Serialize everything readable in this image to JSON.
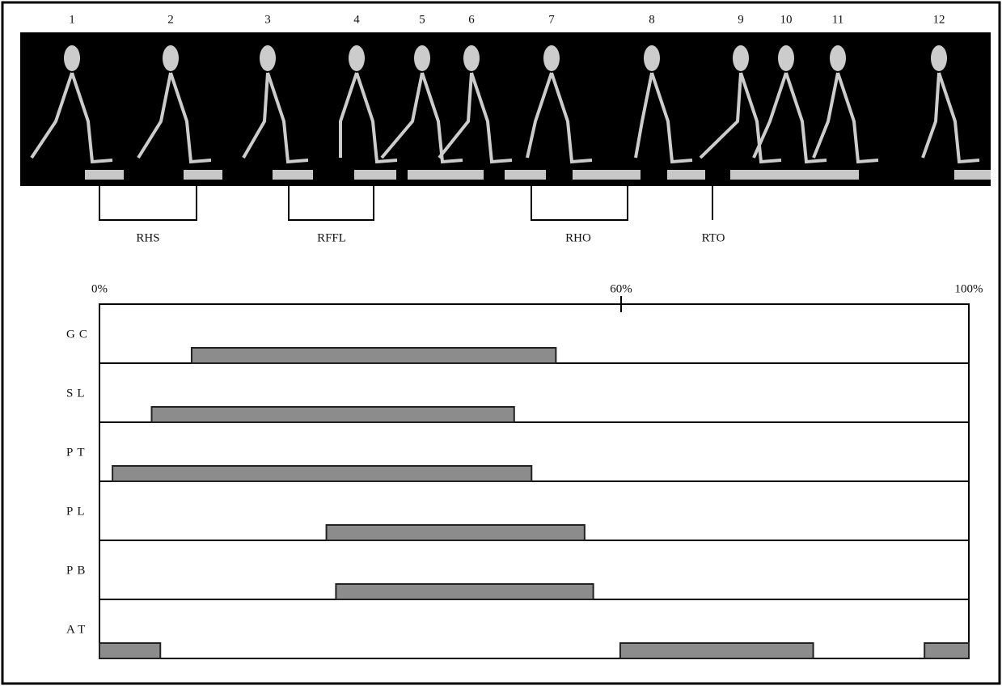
{
  "figure": {
    "frames": [
      "1",
      "2",
      "3",
      "4",
      "5",
      "6",
      "7",
      "8",
      "9",
      "10",
      "11",
      "12"
    ],
    "phases": [
      "RHS",
      "RFFL",
      "RHO",
      "RTO"
    ]
  },
  "chart_data": {
    "type": "range-bar",
    "categories": [
      "GC",
      "SL",
      "PT",
      "PL",
      "PB",
      "AT"
    ],
    "ranges": [
      [
        [
          10.6,
          52.5
        ]
      ],
      [
        [
          6.0,
          47.7
        ]
      ],
      [
        [
          1.5,
          49.7
        ]
      ],
      [
        [
          26.1,
          55.8
        ]
      ],
      [
        [
          27.2,
          56.8
        ]
      ],
      [
        [
          0,
          7.0
        ],
        [
          59.9,
          82.1
        ],
        [
          94.9,
          100
        ]
      ]
    ],
    "color": "#8c8c8c",
    "xlim": [
      0,
      100
    ],
    "xticks": [
      {
        "value": 0,
        "label": "0%"
      },
      {
        "value": 60,
        "label": "60%"
      },
      {
        "value": 100,
        "label": "100%"
      }
    ]
  }
}
